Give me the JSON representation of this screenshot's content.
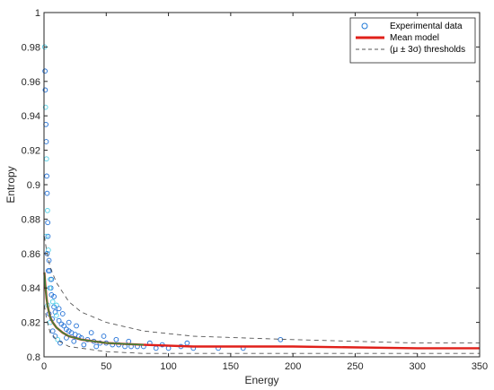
{
  "chart_data": {
    "type": "scatter",
    "xlabel": "Energy",
    "ylabel": "Entropy",
    "xlim": [
      0,
      350
    ],
    "ylim": [
      0.8,
      1.0
    ],
    "x_ticks": [
      0,
      50,
      100,
      150,
      200,
      250,
      300,
      350
    ],
    "y_ticks": [
      0.8,
      0.82,
      0.84,
      0.86,
      0.88,
      0.9,
      0.92,
      0.94,
      0.96,
      0.98,
      1
    ],
    "x_tick_labels": [
      "0",
      "50",
      "100",
      "150",
      "200",
      "250",
      "300",
      "350"
    ],
    "y_tick_labels": [
      "0.8",
      "0.82",
      "0.84",
      "0.86",
      "0.88",
      "0.9",
      "0.92",
      "0.94",
      "0.96",
      "0.98",
      "1"
    ],
    "grid": false,
    "legend_position": "top-right",
    "colors": {
      "points": "#1f6fd6",
      "points_light": "#4fd0e8",
      "mean": "#e0201a",
      "threshold": "#555555",
      "fit": "#3a8a3a"
    },
    "series": [
      {
        "name": "Experimental data",
        "kind": "scatter",
        "points": [
          [
            0.5,
            0.98
          ],
          [
            0.8,
            0.966
          ],
          [
            1.0,
            0.955
          ],
          [
            1.2,
            0.945
          ],
          [
            1.5,
            0.935
          ],
          [
            1.8,
            0.925
          ],
          [
            2.0,
            0.915
          ],
          [
            2.2,
            0.905
          ],
          [
            2.5,
            0.895
          ],
          [
            2.8,
            0.885
          ],
          [
            3.0,
            0.878
          ],
          [
            3.2,
            0.87
          ],
          [
            3.5,
            0.862
          ],
          [
            4.0,
            0.856
          ],
          [
            4.5,
            0.85
          ],
          [
            5.0,
            0.845
          ],
          [
            5.5,
            0.84
          ],
          [
            6.0,
            0.836
          ],
          [
            7.0,
            0.832
          ],
          [
            8.0,
            0.829
          ],
          [
            9.0,
            0.826
          ],
          [
            10.0,
            0.824
          ],
          [
            12.0,
            0.821
          ],
          [
            14.0,
            0.819
          ],
          [
            16.0,
            0.818
          ],
          [
            18.0,
            0.816
          ],
          [
            20.0,
            0.815
          ],
          [
            22.0,
            0.814
          ],
          [
            25.0,
            0.813
          ],
          [
            28.0,
            0.812
          ],
          [
            30.0,
            0.811
          ],
          [
            35.0,
            0.81
          ],
          [
            40.0,
            0.809
          ],
          [
            45.0,
            0.808
          ],
          [
            50.0,
            0.808
          ],
          [
            55.0,
            0.807
          ],
          [
            60.0,
            0.807
          ],
          [
            65.0,
            0.806
          ],
          [
            70.0,
            0.806
          ],
          [
            75.0,
            0.806
          ],
          [
            80.0,
            0.806
          ],
          [
            90.0,
            0.805
          ],
          [
            100.0,
            0.805
          ],
          [
            110.0,
            0.806
          ],
          [
            120.0,
            0.805
          ],
          [
            140.0,
            0.805
          ],
          [
            160.0,
            0.805
          ],
          [
            190.0,
            0.81
          ],
          [
            1.5,
            0.87
          ],
          [
            2.5,
            0.86
          ],
          [
            3.5,
            0.85
          ],
          [
            4.5,
            0.84
          ],
          [
            6.0,
            0.845
          ],
          [
            8.0,
            0.835
          ],
          [
            10.0,
            0.83
          ],
          [
            12.0,
            0.828
          ],
          [
            15.0,
            0.825
          ],
          [
            5.0,
            0.82
          ],
          [
            7.0,
            0.815
          ],
          [
            9.0,
            0.812
          ],
          [
            11.0,
            0.81
          ],
          [
            13.0,
            0.808
          ],
          [
            18.0,
            0.811
          ],
          [
            24.0,
            0.809
          ],
          [
            32.0,
            0.807
          ],
          [
            42.0,
            0.806
          ],
          [
            3.0,
            0.83
          ],
          [
            4.0,
            0.825
          ],
          [
            6.5,
            0.822
          ],
          [
            20.0,
            0.82
          ],
          [
            26.0,
            0.818
          ],
          [
            38.0,
            0.814
          ],
          [
            48.0,
            0.812
          ],
          [
            58.0,
            0.81
          ],
          [
            68.0,
            0.809
          ],
          [
            85.0,
            0.808
          ],
          [
            95.0,
            0.807
          ],
          [
            115.0,
            0.808
          ]
        ]
      },
      {
        "name": "Mean model",
        "kind": "line",
        "points": [
          [
            0.3,
            0.849
          ],
          [
            1,
            0.842
          ],
          [
            2,
            0.834
          ],
          [
            3,
            0.829
          ],
          [
            5,
            0.823
          ],
          [
            7,
            0.82
          ],
          [
            10,
            0.817
          ],
          [
            15,
            0.814
          ],
          [
            20,
            0.812
          ],
          [
            30,
            0.81
          ],
          [
            50,
            0.808
          ],
          [
            80,
            0.807
          ],
          [
            120,
            0.806
          ],
          [
            200,
            0.806
          ],
          [
            300,
            0.805
          ],
          [
            350,
            0.805
          ]
        ]
      },
      {
        "name": "(μ ± 3σ) thresholds",
        "kind": "dashed",
        "upper": [
          [
            0.3,
            0.87
          ],
          [
            2,
            0.862
          ],
          [
            5,
            0.852
          ],
          [
            10,
            0.843
          ],
          [
            20,
            0.832
          ],
          [
            30,
            0.826
          ],
          [
            50,
            0.82
          ],
          [
            80,
            0.815
          ],
          [
            120,
            0.812
          ],
          [
            200,
            0.81
          ],
          [
            300,
            0.808
          ],
          [
            350,
            0.808
          ]
        ],
        "lower": [
          [
            0.3,
            0.83
          ],
          [
            2,
            0.822
          ],
          [
            5,
            0.814
          ],
          [
            10,
            0.81
          ],
          [
            20,
            0.806
          ],
          [
            30,
            0.805
          ],
          [
            50,
            0.803
          ],
          [
            80,
            0.802
          ],
          [
            120,
            0.802
          ],
          [
            200,
            0.802
          ],
          [
            300,
            0.802
          ],
          [
            350,
            0.802
          ]
        ]
      }
    ]
  }
}
